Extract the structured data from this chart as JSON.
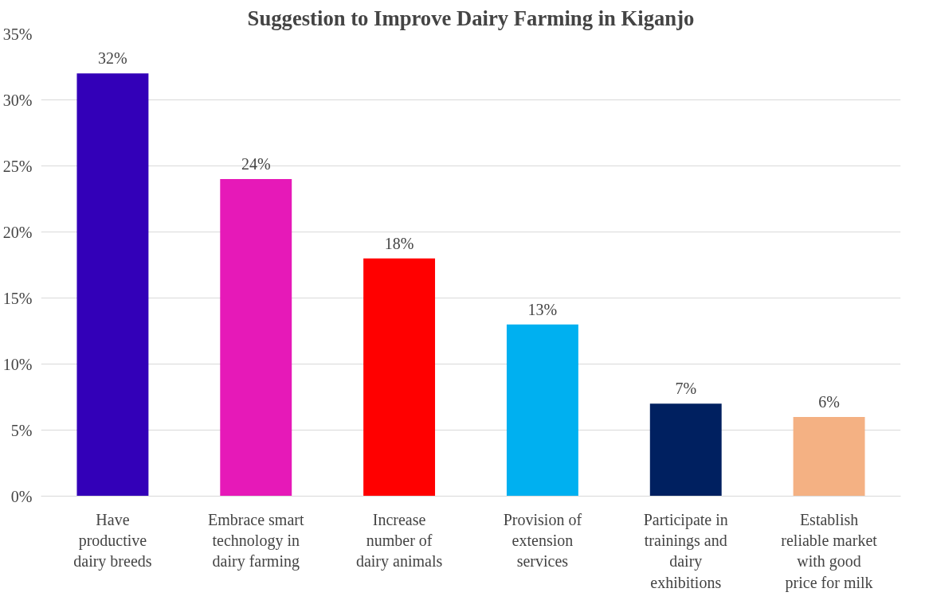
{
  "chart_data": {
    "type": "bar",
    "title": "Suggestion to Improve Dairy Farming in Kiganjo",
    "categories": [
      "Have\nproductive\ndairy breeds",
      "Embrace smart\ntechnology in\ndairy farming",
      "Increase\nnumber of\ndairy animals",
      "Provision of\nextension\nservices",
      "Participate in\ntrainings and\ndairy\nexhibitions",
      "Establish\nreliable market\nwith good\nprice for milk"
    ],
    "values": [
      32,
      24,
      18,
      13,
      7,
      6
    ],
    "colors": [
      "#3300b8",
      "#e619b8",
      "#ff0000",
      "#00b0f0",
      "#002060",
      "#f4b183"
    ],
    "value_labels": [
      "32%",
      "24%",
      "18%",
      "13%",
      "7%",
      "6%"
    ],
    "ylim": [
      0,
      35
    ],
    "yticks": [
      {
        "value": 0,
        "label": "0%"
      },
      {
        "value": 5,
        "label": "5%"
      },
      {
        "value": 10,
        "label": "10%"
      },
      {
        "value": 15,
        "label": "15%"
      },
      {
        "value": 20,
        "label": "20%"
      },
      {
        "value": 25,
        "label": "25%"
      },
      {
        "value": 30,
        "label": "30%"
      },
      {
        "value": 35,
        "label": "35%"
      }
    ],
    "grid": "y"
  }
}
